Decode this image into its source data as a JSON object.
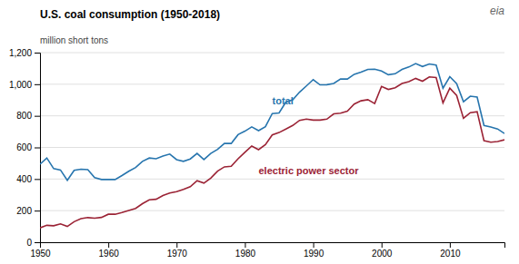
{
  "chart_data": {
    "type": "line",
    "title": "U.S. coal consumption (1950-2018)",
    "ylabel": "million short tons",
    "x": [
      1950,
      1951,
      1952,
      1953,
      1954,
      1955,
      1956,
      1957,
      1958,
      1959,
      1960,
      1961,
      1962,
      1963,
      1964,
      1965,
      1966,
      1967,
      1968,
      1969,
      1970,
      1971,
      1972,
      1973,
      1974,
      1975,
      1976,
      1977,
      1978,
      1979,
      1980,
      1981,
      1982,
      1983,
      1984,
      1985,
      1986,
      1987,
      1988,
      1989,
      1990,
      1991,
      1992,
      1993,
      1994,
      1995,
      1996,
      1997,
      1998,
      1999,
      2000,
      2001,
      2002,
      2003,
      2004,
      2005,
      2006,
      2007,
      2008,
      2009,
      2010,
      2011,
      2012,
      2013,
      2014,
      2015,
      2016,
      2017,
      2018
    ],
    "series": [
      {
        "color": "#2775ae",
        "values": [
          494,
          533,
          466,
          457,
          392,
          455,
          462,
          459,
          409,
          397,
          398,
          397,
          422,
          449,
          473,
          512,
          533,
          528,
          545,
          558,
          523,
          512,
          527,
          562,
          523,
          562,
          588,
          625,
          625,
          681,
          703,
          730,
          706,
          731,
          814,
          818,
          887,
          901,
          950,
          989,
          1029,
          996,
          997,
          1005,
          1033,
          1033,
          1063,
          1076,
          1094,
          1095,
          1084,
          1060,
          1066,
          1094,
          1109,
          1131,
          1112,
          1128,
          1121,
          975,
          1048,
          1004,
          889,
          924,
          919,
          739,
          729,
          717,
          688
        ]
      },
      {
        "color": "#9b2335",
        "values": [
          91,
          107,
          104,
          116,
          100,
          130,
          149,
          156,
          152,
          157,
          177,
          177,
          188,
          201,
          214,
          244,
          268,
          272,
          296,
          311,
          320,
          334,
          351,
          389,
          374,
          406,
          450,
          477,
          481,
          528,
          569,
          609,
          586,
          618,
          679,
          694,
          716,
          739,
          771,
          779,
          773,
          773,
          779,
          812,
          817,
          830,
          874,
          895,
          902,
          878,
          986,
          967,
          978,
          1005,
          1016,
          1037,
          1019,
          1046,
          1042,
          882,
          975,
          929,
          784,
          820,
          826,
          643,
          633,
          637,
          648
        ]
      }
    ],
    "xlim": [
      1950,
      2018
    ],
    "xticks": [
      1950,
      1960,
      1970,
      1980,
      1990,
      2000,
      2010
    ],
    "ylim": [
      0,
      1200
    ],
    "yticks": [
      0,
      200,
      400,
      600,
      800,
      {
        "value": 1000,
        "label": "1,000"
      },
      {
        "value": 1200,
        "label": "1,200"
      }
    ],
    "grid": true,
    "annotations": [
      {
        "text": "total",
        "x": 1984,
        "y": 870,
        "color": "#2775ae"
      },
      {
        "text": "electric power sector",
        "x": 1982,
        "y": 430,
        "color": "#9b2335"
      },
      {
        "text": "eia"
      }
    ]
  }
}
